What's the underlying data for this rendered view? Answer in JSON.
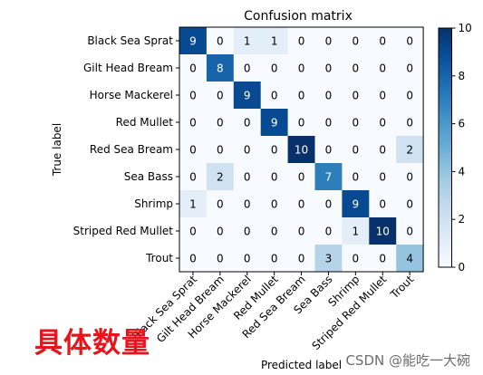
{
  "chart_data": {
    "type": "heatmap",
    "title": "Confusion matrix",
    "xlabel": "Predicted label",
    "ylabel": "True label",
    "row_labels": [
      "Black Sea Sprat",
      "Gilt Head Bream",
      "Horse Mackerel",
      "Red Mullet",
      "Red Sea Bream",
      "Sea Bass",
      "Shrimp",
      "Striped Red Mullet",
      "Trout"
    ],
    "col_labels": [
      "Black Sea Sprat",
      "Gilt Head Bream",
      "Horse Mackerel",
      "Red Mullet",
      "Red Sea Bream",
      "Sea Bass",
      "Shrimp",
      "Striped Red Mullet",
      "Trout"
    ],
    "matrix": [
      [
        9,
        0,
        1,
        1,
        0,
        0,
        0,
        0,
        0
      ],
      [
        0,
        8,
        0,
        0,
        0,
        0,
        0,
        0,
        0
      ],
      [
        0,
        0,
        9,
        0,
        0,
        0,
        0,
        0,
        0
      ],
      [
        0,
        0,
        0,
        9,
        0,
        0,
        0,
        0,
        0
      ],
      [
        0,
        0,
        0,
        0,
        10,
        0,
        0,
        0,
        2
      ],
      [
        0,
        2,
        0,
        0,
        0,
        7,
        0,
        0,
        0
      ],
      [
        1,
        0,
        0,
        0,
        0,
        0,
        9,
        0,
        0
      ],
      [
        0,
        0,
        0,
        0,
        0,
        0,
        1,
        10,
        0
      ],
      [
        0,
        0,
        0,
        0,
        0,
        3,
        0,
        0,
        4
      ]
    ],
    "colormap": "Blues",
    "vmin": 0,
    "vmax": 10,
    "colorbar_ticks": [
      0,
      2,
      4,
      6,
      8,
      10
    ]
  },
  "annotation": "具体数量",
  "watermark": "CSDN @能吃一大碗"
}
